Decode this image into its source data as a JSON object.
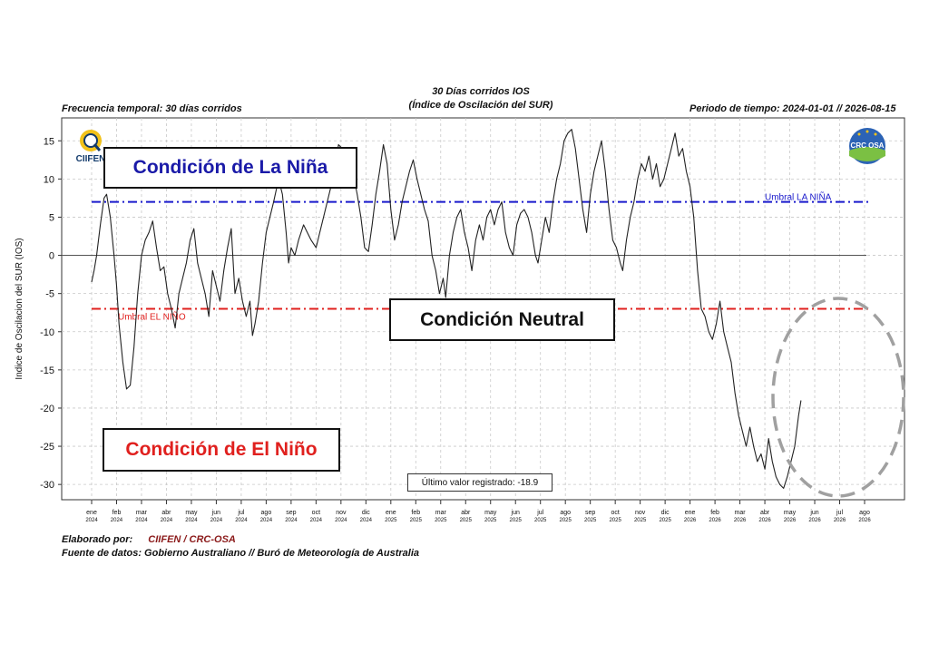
{
  "header": {
    "frequency": "Frecuencia temporal: 30 días corridos",
    "title_line1": "30 Días corridos IOS",
    "title_line2": "(Índice de Oscilación del SUR)",
    "period": "Periodo de tiempo: 2024-01-01 // 2026-08-15"
  },
  "logos": {
    "left_text": "CIIFEN",
    "right_text": "CRC OSA"
  },
  "boxes": {
    "nina": "Condición de La Niña",
    "neutral": "Condición Neutral",
    "nino": "Condición de El Niño",
    "last_value": "Último valor registrado: -18.9"
  },
  "colors": {
    "nina": "#1a1acc",
    "nino": "#e0201e",
    "series": "#222222",
    "ellipse": "#a0a0a0"
  },
  "footer": {
    "elaborado_label": "Elaborado por:",
    "elaborado_value": "CIIFEN / CRC-OSA",
    "fuente": "Fuente de datos: Gobierno Australiano // Buró de Meteorología de Australia"
  },
  "chart_data": {
    "type": "line",
    "ylabel": "Indice de Oscilacion del SUR (IOS)",
    "ylim": [
      -32,
      18
    ],
    "yticks": [
      15,
      10,
      5,
      0,
      -5,
      -10,
      -15,
      -20,
      -25,
      -30
    ],
    "grid": true,
    "x_month_labels": [
      [
        "ene",
        "2024"
      ],
      [
        "feb",
        "2024"
      ],
      [
        "mar",
        "2024"
      ],
      [
        "abr",
        "2024"
      ],
      [
        "may",
        "2024"
      ],
      [
        "jun",
        "2024"
      ],
      [
        "jul",
        "2024"
      ],
      [
        "ago",
        "2024"
      ],
      [
        "sep",
        "2024"
      ],
      [
        "oct",
        "2024"
      ],
      [
        "nov",
        "2024"
      ],
      [
        "dic",
        "2024"
      ],
      [
        "ene",
        "2025"
      ],
      [
        "feb",
        "2025"
      ],
      [
        "mar",
        "2025"
      ],
      [
        "abr",
        "2025"
      ],
      [
        "may",
        "2025"
      ],
      [
        "jun",
        "2025"
      ],
      [
        "jul",
        "2025"
      ],
      [
        "ago",
        "2025"
      ],
      [
        "sep",
        "2025"
      ],
      [
        "oct",
        "2025"
      ],
      [
        "nov",
        "2025"
      ],
      [
        "dic",
        "2025"
      ],
      [
        "ene",
        "2026"
      ],
      [
        "feb",
        "2026"
      ],
      [
        "mar",
        "2026"
      ],
      [
        "abr",
        "2026"
      ],
      [
        "may",
        "2026"
      ],
      [
        "jun",
        "2026"
      ],
      [
        "jul",
        "2026"
      ],
      [
        "ago",
        "2026"
      ]
    ],
    "thresholds": [
      {
        "name": "Umbral LA NIÑA",
        "value": 7,
        "color": "#1a1acc"
      },
      {
        "name": "Umbral EL NIÑO",
        "value": -7,
        "color": "#e0201e"
      }
    ],
    "zero_line": 0,
    "series": [
      {
        "values": [
          [
            0,
            -3.5
          ],
          [
            0.1,
            -2
          ],
          [
            0.2,
            0
          ],
          [
            0.35,
            4
          ],
          [
            0.5,
            7.5
          ],
          [
            0.6,
            8
          ],
          [
            0.75,
            5
          ],
          [
            0.9,
            0
          ],
          [
            1.0,
            -4
          ],
          [
            1.1,
            -9
          ],
          [
            1.25,
            -14
          ],
          [
            1.4,
            -17.5
          ],
          [
            1.55,
            -17
          ],
          [
            1.7,
            -12
          ],
          [
            1.85,
            -5
          ],
          [
            2.0,
            0
          ],
          [
            2.15,
            2
          ],
          [
            2.3,
            3
          ],
          [
            2.45,
            4.5
          ],
          [
            2.6,
            1
          ],
          [
            2.75,
            -2
          ],
          [
            2.9,
            -1.5
          ],
          [
            3.05,
            -5
          ],
          [
            3.2,
            -7
          ],
          [
            3.35,
            -9.5
          ],
          [
            3.5,
            -5
          ],
          [
            3.65,
            -3
          ],
          [
            3.8,
            -1
          ],
          [
            3.95,
            2
          ],
          [
            4.1,
            3.5
          ],
          [
            4.25,
            -1
          ],
          [
            4.4,
            -3
          ],
          [
            4.55,
            -5
          ],
          [
            4.7,
            -8
          ],
          [
            4.85,
            -2
          ],
          [
            5.0,
            -4
          ],
          [
            5.15,
            -6
          ],
          [
            5.3,
            -2
          ],
          [
            5.45,
            1
          ],
          [
            5.6,
            3.5
          ],
          [
            5.75,
            -5
          ],
          [
            5.9,
            -3
          ],
          [
            6.05,
            -6
          ],
          [
            6.2,
            -8
          ],
          [
            6.35,
            -6
          ],
          [
            6.45,
            -10.5
          ],
          [
            6.55,
            -9
          ],
          [
            6.7,
            -6
          ],
          [
            6.85,
            -1
          ],
          [
            7.0,
            3
          ],
          [
            7.15,
            5
          ],
          [
            7.3,
            7
          ],
          [
            7.5,
            10
          ],
          [
            7.65,
            8
          ],
          [
            7.8,
            3
          ],
          [
            7.9,
            -1
          ],
          [
            8.0,
            1
          ],
          [
            8.15,
            0
          ],
          [
            8.3,
            2
          ],
          [
            8.5,
            4
          ],
          [
            8.65,
            3
          ],
          [
            8.8,
            2
          ],
          [
            9.0,
            1
          ],
          [
            9.15,
            3
          ],
          [
            9.3,
            5
          ],
          [
            9.45,
            7
          ],
          [
            9.6,
            9
          ],
          [
            9.75,
            11
          ],
          [
            9.9,
            14.5
          ],
          [
            10.05,
            14
          ],
          [
            10.2,
            13
          ],
          [
            10.35,
            12
          ],
          [
            10.5,
            10.5
          ],
          [
            10.65,
            8
          ],
          [
            10.8,
            5
          ],
          [
            10.95,
            1
          ],
          [
            11.1,
            0.5
          ],
          [
            11.25,
            4
          ],
          [
            11.4,
            8
          ],
          [
            11.55,
            11
          ],
          [
            11.7,
            14.5
          ],
          [
            11.85,
            12
          ],
          [
            12.0,
            6
          ],
          [
            12.15,
            2
          ],
          [
            12.3,
            4
          ],
          [
            12.45,
            7
          ],
          [
            12.6,
            9
          ],
          [
            12.75,
            11
          ],
          [
            12.9,
            12.5
          ],
          [
            13.05,
            10
          ],
          [
            13.2,
            8
          ],
          [
            13.35,
            6
          ],
          [
            13.5,
            4.5
          ],
          [
            13.65,
            0
          ],
          [
            13.8,
            -2
          ],
          [
            13.95,
            -5
          ],
          [
            14.1,
            -3
          ],
          [
            14.2,
            -5.5
          ],
          [
            14.35,
            0
          ],
          [
            14.5,
            3
          ],
          [
            14.65,
            5
          ],
          [
            14.8,
            6
          ],
          [
            14.95,
            3
          ],
          [
            15.1,
            1
          ],
          [
            15.25,
            -2
          ],
          [
            15.4,
            2
          ],
          [
            15.55,
            4
          ],
          [
            15.7,
            2
          ],
          [
            15.85,
            5
          ],
          [
            16.0,
            6
          ],
          [
            16.15,
            4
          ],
          [
            16.3,
            6
          ],
          [
            16.45,
            7
          ],
          [
            16.6,
            3
          ],
          [
            16.75,
            1
          ],
          [
            16.9,
            0
          ],
          [
            17.05,
            4
          ],
          [
            17.2,
            5.5
          ],
          [
            17.35,
            6
          ],
          [
            17.5,
            5
          ],
          [
            17.65,
            3
          ],
          [
            17.8,
            0
          ],
          [
            17.9,
            -1
          ],
          [
            18.05,
            2
          ],
          [
            18.2,
            5
          ],
          [
            18.35,
            3
          ],
          [
            18.5,
            7
          ],
          [
            18.65,
            10
          ],
          [
            18.8,
            12
          ],
          [
            18.95,
            15
          ],
          [
            19.1,
            16
          ],
          [
            19.25,
            16.5
          ],
          [
            19.4,
            14
          ],
          [
            19.55,
            10
          ],
          [
            19.7,
            6
          ],
          [
            19.85,
            3
          ],
          [
            20.0,
            8
          ],
          [
            20.15,
            11
          ],
          [
            20.3,
            13
          ],
          [
            20.45,
            15
          ],
          [
            20.6,
            11
          ],
          [
            20.75,
            6
          ],
          [
            20.9,
            2
          ],
          [
            21.05,
            1
          ],
          [
            21.2,
            -1
          ],
          [
            21.3,
            -2
          ],
          [
            21.45,
            2
          ],
          [
            21.6,
            5
          ],
          [
            21.75,
            7
          ],
          [
            21.9,
            10
          ],
          [
            22.05,
            12
          ],
          [
            22.2,
            11
          ],
          [
            22.35,
            13
          ],
          [
            22.5,
            10
          ],
          [
            22.65,
            12
          ],
          [
            22.8,
            9
          ],
          [
            22.95,
            10
          ],
          [
            23.1,
            12
          ],
          [
            23.25,
            14
          ],
          [
            23.4,
            16
          ],
          [
            23.55,
            13
          ],
          [
            23.7,
            14
          ],
          [
            23.85,
            11
          ],
          [
            24.0,
            9
          ],
          [
            24.15,
            5
          ],
          [
            24.3,
            -2
          ],
          [
            24.45,
            -7
          ],
          [
            24.6,
            -8
          ],
          [
            24.75,
            -10
          ],
          [
            24.9,
            -11
          ],
          [
            25.05,
            -9
          ],
          [
            25.2,
            -6
          ],
          [
            25.35,
            -10
          ],
          [
            25.5,
            -12
          ],
          [
            25.65,
            -14
          ],
          [
            25.8,
            -18
          ],
          [
            25.95,
            -21
          ],
          [
            26.1,
            -23
          ],
          [
            26.25,
            -25
          ],
          [
            26.4,
            -22.5
          ],
          [
            26.55,
            -25
          ],
          [
            26.7,
            -27
          ],
          [
            26.85,
            -26
          ],
          [
            27.0,
            -28
          ],
          [
            27.15,
            -24
          ],
          [
            27.3,
            -27
          ],
          [
            27.45,
            -29
          ],
          [
            27.6,
            -30
          ],
          [
            27.75,
            -30.5
          ],
          [
            27.9,
            -29
          ],
          [
            28.05,
            -27
          ],
          [
            28.2,
            -25
          ],
          [
            28.35,
            -21
          ],
          [
            28.45,
            -19
          ]
        ]
      }
    ],
    "annotations": [
      {
        "text": "Último valor registrado: -18.9"
      }
    ]
  }
}
